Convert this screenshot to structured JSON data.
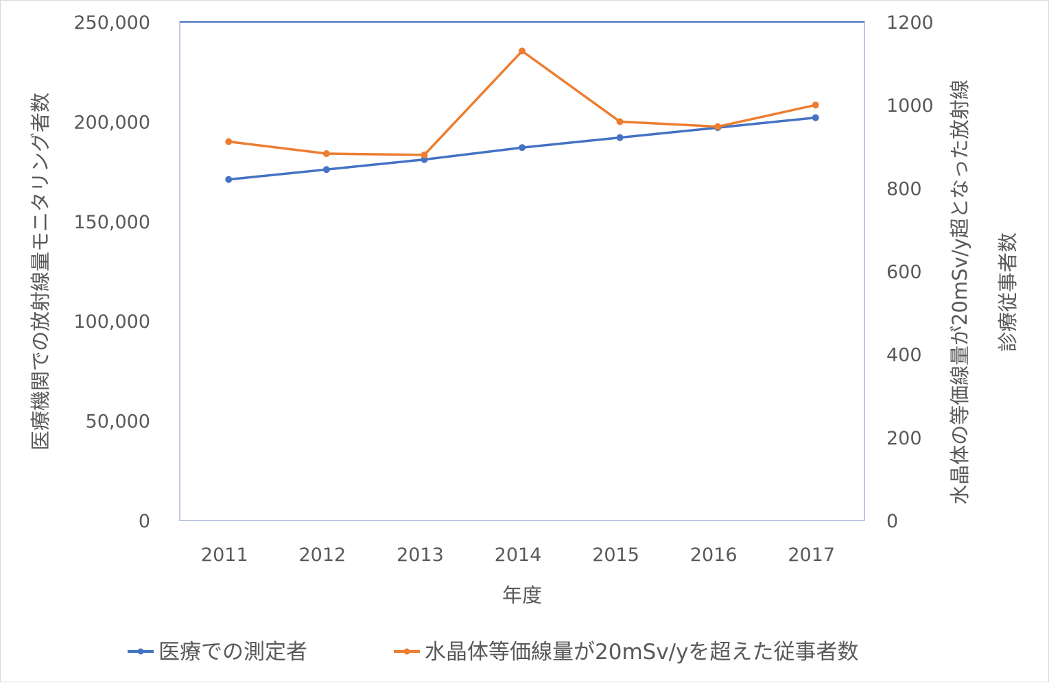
{
  "chart_data": {
    "type": "line",
    "categories": [
      "2011",
      "2012",
      "2013",
      "2014",
      "2015",
      "2016",
      "2017"
    ],
    "xlabel": "年度",
    "y_left": {
      "label": "医療機関での放射線量モニタリング者数",
      "ylim": [
        0,
        250000
      ],
      "ticks": [
        "0",
        "50,000",
        "100,000",
        "150,000",
        "200,000",
        "250,000"
      ]
    },
    "y_right": {
      "label_line1": "水晶体の等価線量が20mSv/y超となった放射線",
      "label_line2": "診療従事者数",
      "ylim": [
        0,
        1200
      ],
      "ticks": [
        "0",
        "200",
        "400",
        "600",
        "800",
        "1000",
        "1200"
      ]
    },
    "series": [
      {
        "name": "医療での測定者",
        "axis": "left",
        "color": "#4472C4",
        "values": [
          171000,
          176000,
          181000,
          187000,
          192000,
          197000,
          202000
        ]
      },
      {
        "name": "水晶体等価線量が20mSv/yを超えた従事者数",
        "axis": "right",
        "color": "#ED7D31",
        "values": [
          912,
          883,
          880,
          1130,
          960,
          948,
          1000
        ]
      }
    ],
    "grid": false,
    "legend": "bottom"
  }
}
